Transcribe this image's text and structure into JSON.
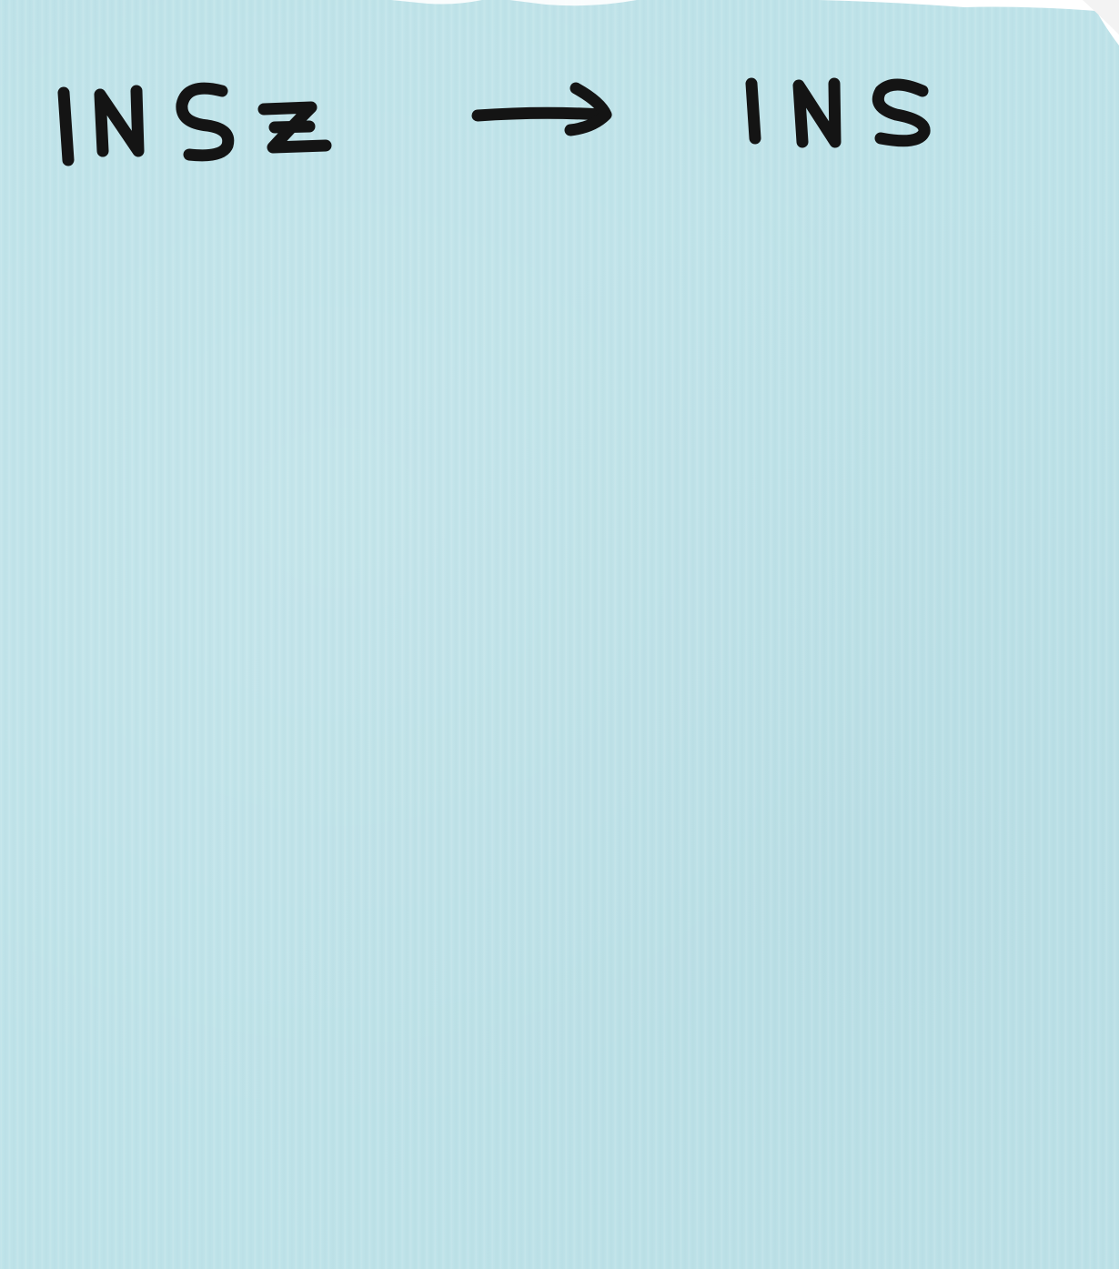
{
  "note": {
    "left_text": "INSZ",
    "arrow": "→",
    "right_text": "INS"
  },
  "colors": {
    "paper": "#bfe3e9",
    "ink": "#141414",
    "background_edge": "#ffffff"
  }
}
